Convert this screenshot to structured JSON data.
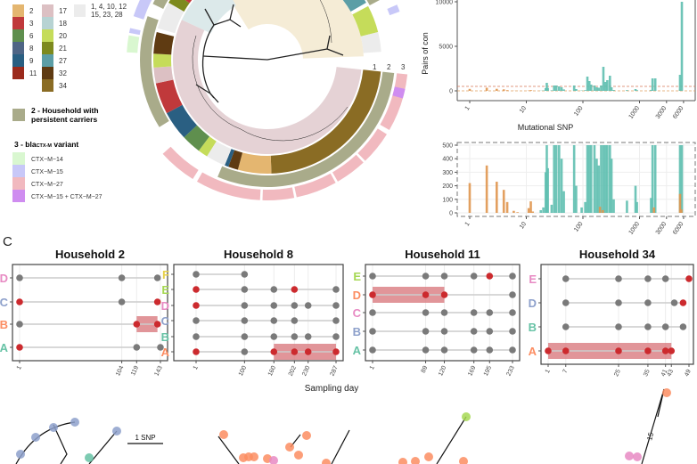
{
  "legend": {
    "households_col1": [
      {
        "label": "2",
        "color": "#e4b670"
      },
      {
        "label": "3",
        "color": "#c0393b"
      },
      {
        "label": "6",
        "color": "#5f8f4e"
      },
      {
        "label": "8",
        "color": "#4f6585"
      },
      {
        "label": "9",
        "color": "#2a5f82"
      },
      {
        "label": "11",
        "color": "#9b2a1c"
      }
    ],
    "households_col2": [
      {
        "label": "17",
        "color": "#dcc0c3"
      },
      {
        "label": "18",
        "color": "#b7d3d3"
      },
      {
        "label": "20",
        "color": "#c5dc5a"
      },
      {
        "label": "21",
        "color": "#7d8a1e"
      },
      {
        "label": "27",
        "color": "#5c9ea6"
      },
      {
        "label": "32",
        "color": "#5f3b12"
      },
      {
        "label": "34",
        "color": "#8a6c24"
      }
    ],
    "other_households": {
      "line1": "1, 4, 10, 12",
      "line2": "15, 23, 28",
      "color": "#ececec"
    },
    "persistent": {
      "line1": "2 - Household with",
      "line2": "persistent carriers",
      "color": "#a9ab8a"
    },
    "variant_title_prefix": "3 - bla",
    "variant_title_sub": "CTX-M",
    "variant_title_suffix": " variant",
    "variants": [
      {
        "label": "CTX−M−14",
        "color": "#d9f7d0"
      },
      {
        "label": "CTX−M−15",
        "color": "#c8c8f8"
      },
      {
        "label": "CTX−M−27",
        "color": "#f1b9bf"
      },
      {
        "label": "CTX−M−15 + CTX−M−27",
        "color": "#cf8df0"
      }
    ]
  },
  "tree": {
    "ring_labels": [
      "1",
      "2",
      "3"
    ]
  },
  "panel_c_letter": "C",
  "chart_data": [
    {
      "type": "bar",
      "ylabel": "Pairs of con",
      "xlabel": "Mutational SNP",
      "x_scale": "log",
      "x_ticks": [
        "1",
        "10",
        "100",
        "1000",
        "3000",
        "6000"
      ],
      "y_ticks": [
        "0",
        "5000",
        "10000"
      ],
      "ylim": [
        0,
        10000
      ],
      "reference_lines": [
        0,
        500
      ],
      "series": [
        {
          "color": "#e0964f",
          "points": [
            [
              1,
              220
            ],
            [
              2,
              350
            ],
            [
              3,
              230
            ],
            [
              4,
              170
            ],
            [
              4.6,
              80
            ],
            [
              6,
              15
            ],
            [
              7,
              5
            ],
            [
              11,
              35
            ],
            [
              12,
              85
            ],
            [
              13,
              10
            ],
            [
              200,
              45
            ],
            [
              225,
              20
            ],
            [
              1800,
              40
            ],
            [
              5200,
              140
            ],
            [
              5500,
              25
            ]
          ]
        },
        {
          "color": "#5fbfb0",
          "points": [
            [
              18,
              20
            ],
            [
              20,
              40
            ],
            [
              22,
              300
            ],
            [
              23,
              900
            ],
            [
              24,
              330
            ],
            [
              28,
              60
            ],
            [
              31,
              600
            ],
            [
              34,
              600
            ],
            [
              38,
              500
            ],
            [
              42,
              400
            ],
            [
              46,
              160
            ],
            [
              70,
              600
            ],
            [
              76,
              200
            ],
            [
              95,
              40
            ],
            [
              110,
              80
            ],
            [
              120,
              1600
            ],
            [
              130,
              1100
            ],
            [
              140,
              700
            ],
            [
              160,
              600
            ],
            [
              175,
              400
            ],
            [
              190,
              350
            ],
            [
              210,
              600
            ],
            [
              230,
              2700
            ],
            [
              250,
              1000
            ],
            [
              270,
              1200
            ],
            [
              300,
              1700
            ],
            [
              320,
              400
            ],
            [
              350,
              100
            ],
            [
              600,
              90
            ],
            [
              850,
              200
            ],
            [
              900,
              80
            ],
            [
              1600,
              110
            ],
            [
              1700,
              1400
            ],
            [
              1900,
              1400
            ],
            [
              5200,
              1800
            ],
            [
              5600,
              10000
            ]
          ]
        }
      ]
    },
    {
      "type": "bar",
      "x_scale": "log",
      "x_ticks": [
        "1",
        "10",
        "100",
        "1000",
        "3000",
        "6000"
      ],
      "y_ticks": [
        "0",
        "100",
        "200",
        "300",
        "400",
        "500"
      ],
      "ylim": [
        0,
        500
      ]
    },
    {
      "type": "timeline",
      "title": "Household 2",
      "x_ticks": [
        1,
        104,
        119,
        143
      ],
      "rows": [
        {
          "label": "D",
          "color": "#e78ac3",
          "points": [
            [
              1,
              "grey"
            ],
            [
              104,
              "grey"
            ],
            [
              140,
              "grey"
            ]
          ]
        },
        {
          "label": "C",
          "color": "#8da0cb",
          "points": [
            [
              1,
              "red"
            ],
            [
              104,
              "grey"
            ],
            [
              140,
              "red"
            ]
          ]
        },
        {
          "label": "B",
          "color": "#fc8d62",
          "points": [
            [
              1,
              "grey"
            ],
            [
              119,
              "red"
            ],
            [
              140,
              "red"
            ]
          ],
          "carriage": [
            119,
            140
          ]
        },
        {
          "label": "A",
          "color": "#66c2a5",
          "points": [
            [
              1,
              "red"
            ],
            [
              119,
              "grey"
            ],
            [
              143,
              "grey"
            ]
          ]
        }
      ]
    },
    {
      "type": "timeline",
      "title": "Household 8",
      "x_ticks": [
        1,
        100,
        160,
        202,
        230,
        287
      ],
      "rows": [
        {
          "label": "F",
          "color": "#e6d04a",
          "points": [
            [
              1,
              "grey"
            ],
            [
              100,
              "grey"
            ]
          ]
        },
        {
          "label": "E",
          "color": "#a6d854",
          "points": [
            [
              1,
              "red"
            ],
            [
              100,
              "grey"
            ],
            [
              160,
              "grey"
            ],
            [
              202,
              "red"
            ],
            [
              287,
              "grey"
            ]
          ]
        },
        {
          "label": "D",
          "color": "#e78ac3",
          "points": [
            [
              1,
              "red"
            ],
            [
              100,
              "grey"
            ],
            [
              160,
              "grey"
            ],
            [
              202,
              "grey"
            ],
            [
              230,
              "grey"
            ],
            [
              287,
              "grey"
            ]
          ]
        },
        {
          "label": "C",
          "color": "#8da0cb",
          "points": [
            [
              1,
              "grey"
            ],
            [
              100,
              "grey"
            ],
            [
              160,
              "grey"
            ],
            [
              202,
              "grey"
            ],
            [
              287,
              "grey"
            ]
          ]
        },
        {
          "label": "B",
          "color": "#66c2a5",
          "points": [
            [
              1,
              "grey"
            ],
            [
              100,
              "grey"
            ],
            [
              160,
              "grey"
            ],
            [
              202,
              "grey"
            ],
            [
              230,
              "grey"
            ],
            [
              287,
              "grey"
            ]
          ]
        },
        {
          "label": "A",
          "color": "#fc8d62",
          "points": [
            [
              1,
              "red"
            ],
            [
              100,
              "grey"
            ],
            [
              160,
              "red"
            ],
            [
              202,
              "red"
            ],
            [
              230,
              "red"
            ],
            [
              287,
              "red"
            ]
          ],
          "carriage": [
            160,
            287
          ]
        }
      ]
    },
    {
      "type": "timeline",
      "title": "Household 11",
      "xlabel": "Sampling day",
      "x_ticks": [
        1,
        89,
        120,
        169,
        195,
        233
      ],
      "rows": [
        {
          "label": "E",
          "color": "#a6d854",
          "points": [
            [
              1,
              "grey"
            ],
            [
              89,
              "grey"
            ],
            [
              120,
              "grey"
            ],
            [
              169,
              "grey"
            ],
            [
              195,
              "red"
            ],
            [
              233,
              "grey"
            ]
          ]
        },
        {
          "label": "D",
          "color": "#fc8d62",
          "points": [
            [
              1,
              "red"
            ],
            [
              89,
              "red"
            ],
            [
              120,
              "red"
            ],
            [
              233,
              "grey"
            ]
          ],
          "carriage": [
            1,
            120
          ]
        },
        {
          "label": "C",
          "color": "#e78ac3",
          "points": [
            [
              1,
              "grey"
            ],
            [
              89,
              "grey"
            ],
            [
              120,
              "grey"
            ],
            [
              169,
              "grey"
            ],
            [
              195,
              "grey"
            ],
            [
              233,
              "grey"
            ]
          ]
        },
        {
          "label": "B",
          "color": "#8da0cb",
          "points": [
            [
              1,
              "grey"
            ],
            [
              89,
              "grey"
            ],
            [
              120,
              "grey"
            ],
            [
              169,
              "grey"
            ],
            [
              195,
              "grey"
            ],
            [
              233,
              "grey"
            ]
          ]
        },
        {
          "label": "A",
          "color": "#66c2a5",
          "points": [
            [
              1,
              "grey"
            ],
            [
              89,
              "grey"
            ],
            [
              120,
              "grey"
            ],
            [
              169,
              "grey"
            ],
            [
              195,
              "grey"
            ],
            [
              233,
              "grey"
            ]
          ]
        }
      ]
    },
    {
      "type": "timeline",
      "title": "Household 34",
      "x_ticks": [
        1,
        7,
        25,
        35,
        41,
        43,
        49
      ],
      "rows": [
        {
          "label": "E",
          "color": "#e78ac3",
          "points": [
            [
              7,
              "grey"
            ],
            [
              25,
              "grey"
            ],
            [
              35,
              "grey"
            ],
            [
              41,
              "grey"
            ],
            [
              49,
              "red"
            ]
          ]
        },
        {
          "label": "D",
          "color": "#8da0cb",
          "points": [
            [
              7,
              "grey"
            ],
            [
              25,
              "grey"
            ],
            [
              35,
              "grey"
            ],
            [
              44,
              "grey"
            ],
            [
              47,
              "red"
            ]
          ]
        },
        {
          "label": "B",
          "color": "#66c2a5",
          "points": [
            [
              7,
              "grey"
            ],
            [
              25,
              "grey"
            ],
            [
              35,
              "grey"
            ],
            [
              41,
              "grey"
            ],
            [
              47,
              "grey"
            ]
          ]
        },
        {
          "label": "A",
          "color": "#fc8d62",
          "points": [
            [
              1,
              "red"
            ],
            [
              7,
              "red"
            ],
            [
              25,
              "red"
            ],
            [
              35,
              "red"
            ],
            [
              41,
              "red"
            ],
            [
              43,
              "red"
            ]
          ],
          "carriage": [
            1,
            43
          ]
        }
      ]
    }
  ],
  "snp_trees": {
    "scale_label": "1 SNP",
    "branch_label": "15"
  }
}
